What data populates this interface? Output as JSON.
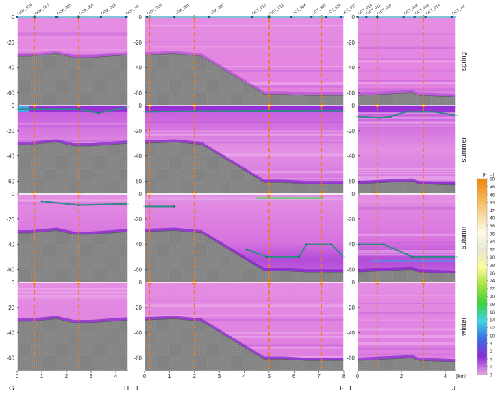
{
  "chart_data": {
    "type": "heatmap",
    "title": "",
    "seasons": [
      "spring",
      "summer",
      "autumn",
      "winter"
    ],
    "y_axis": {
      "range": [
        0,
        -70
      ],
      "ticks": [
        0,
        -20,
        -40,
        -60
      ]
    },
    "x_unit": "[km]",
    "sections": [
      {
        "start_label": "G",
        "end_label": "H",
        "xlim": [
          0,
          4.5
        ],
        "x_ticks": [
          0,
          1,
          2,
          3,
          4
        ],
        "stations": [
          {
            "name": "GOA_010",
            "km": 0.0
          },
          {
            "name": "GOA_005",
            "km": 0.7
          },
          {
            "name": "GOA_001",
            "km": 1.6
          },
          {
            "name": "GOA_003",
            "km": 2.5
          },
          {
            "name": "GOA_012",
            "km": 3.4
          },
          {
            "name": "GOA_ref",
            "km": 4.4
          }
        ],
        "profile_km": [
          0.7,
          2.5
        ],
        "seabed": [
          [
            0,
            -31
          ],
          [
            0.5,
            -31
          ],
          [
            1.6,
            -29
          ],
          [
            2.3,
            -32
          ],
          [
            3.0,
            -32
          ],
          [
            4.5,
            -30
          ]
        ]
      },
      {
        "start_label": "E",
        "end_label": "F",
        "xlim": [
          0,
          8
        ],
        "x_ticks": [
          0,
          1,
          2,
          3,
          4,
          5,
          6,
          7,
          8
        ],
        "stations": [
          {
            "name": "GOA_009",
            "km": 0.1
          },
          {
            "name": "GOA_001",
            "km": 1.2
          },
          {
            "name": "GOA_007",
            "km": 2.6
          },
          {
            "name": "OCT_013",
            "km": 4.3
          },
          {
            "name": "OCT_012",
            "km": 5.0
          },
          {
            "name": "OCT_004",
            "km": 5.9
          },
          {
            "name": "OCT_005",
            "km": 6.7
          },
          {
            "name": "OCT_010",
            "km": 7.3
          },
          {
            "name": "OCT_015",
            "km": 7.9
          }
        ],
        "profile_km": [
          0.2,
          2.0,
          5.0,
          7.1
        ],
        "seabed": [
          [
            0,
            -30
          ],
          [
            1.2,
            -29
          ],
          [
            2.3,
            -31
          ],
          [
            4.8,
            -61
          ],
          [
            5.6,
            -61
          ],
          [
            6.5,
            -62
          ],
          [
            8,
            -62
          ]
        ]
      },
      {
        "start_label": "I",
        "end_label": "J",
        "xlim": [
          0,
          4.5
        ],
        "x_ticks": [
          0,
          2,
          4
        ],
        "stations": [
          {
            "name": "OCT_016",
            "km": 0.0
          },
          {
            "name": "OCT_011",
            "km": 0.4
          },
          {
            "name": "OCT_007",
            "km": 0.9
          },
          {
            "name": "OCT_002",
            "km": 2.1
          },
          {
            "name": "OCT_009",
            "km": 2.6
          },
          {
            "name": "OCT_014",
            "km": 3.1
          },
          {
            "name": "OCT_ref",
            "km": 4.3
          }
        ],
        "profile_km": [
          0.9,
          3.0
        ],
        "seabed": [
          [
            0,
            -62
          ],
          [
            1.2,
            -61
          ],
          [
            2.5,
            -60
          ],
          [
            2.8,
            -62
          ],
          [
            4.5,
            -63
          ]
        ]
      }
    ],
    "lines": {
      "summer": [
        [
          [
            0,
            -3
          ],
          [
            2.5,
            -3
          ],
          [
            3.3,
            -6
          ],
          [
            4.5,
            -1
          ]
        ],
        [
          [
            0,
            -5
          ],
          [
            8,
            -4
          ]
        ],
        [
          [
            0,
            -9
          ],
          [
            1,
            -10
          ],
          [
            1.5,
            -9
          ],
          [
            2.2,
            -5
          ],
          [
            3.5,
            -5
          ],
          [
            4.5,
            -8
          ]
        ]
      ],
      "autumn": [
        [
          [
            1.0,
            -6
          ],
          [
            2.5,
            -9
          ],
          [
            4.5,
            -8
          ]
        ],
        [
          [
            0,
            -10
          ],
          [
            1.2,
            -10
          ]
        ],
        [
          [
            0,
            -40
          ],
          [
            1.2,
            -40
          ],
          [
            2.5,
            -50
          ],
          [
            4.5,
            -50
          ]
        ]
      ],
      "autumn_deep": [
        [
          4.1,
          -44
        ],
        [
          4.9,
          -50
        ],
        [
          6.2,
          -50
        ],
        [
          6.5,
          -40
        ],
        [
          7.5,
          -40
        ],
        [
          8,
          -50
        ]
      ]
    },
    "colorbar": {
      "unit": "[FTU]",
      "min": 0,
      "max": 50,
      "ticks": [
        0,
        2,
        4,
        6,
        8,
        10,
        12,
        14,
        16,
        18,
        20,
        22,
        24,
        26,
        28,
        30,
        32,
        34,
        36,
        38,
        40,
        42,
        44,
        46,
        48,
        50
      ],
      "colors": [
        "#e9a7e5",
        "#8d2cd6",
        "#3a6be6",
        "#3bd4e6",
        "#3ad43a",
        "#a3e23a",
        "#fdfa9b",
        "#e8e6d4",
        "#fefce8",
        "#f7d79b",
        "#f6b04a",
        "#f2860d"
      ]
    }
  }
}
